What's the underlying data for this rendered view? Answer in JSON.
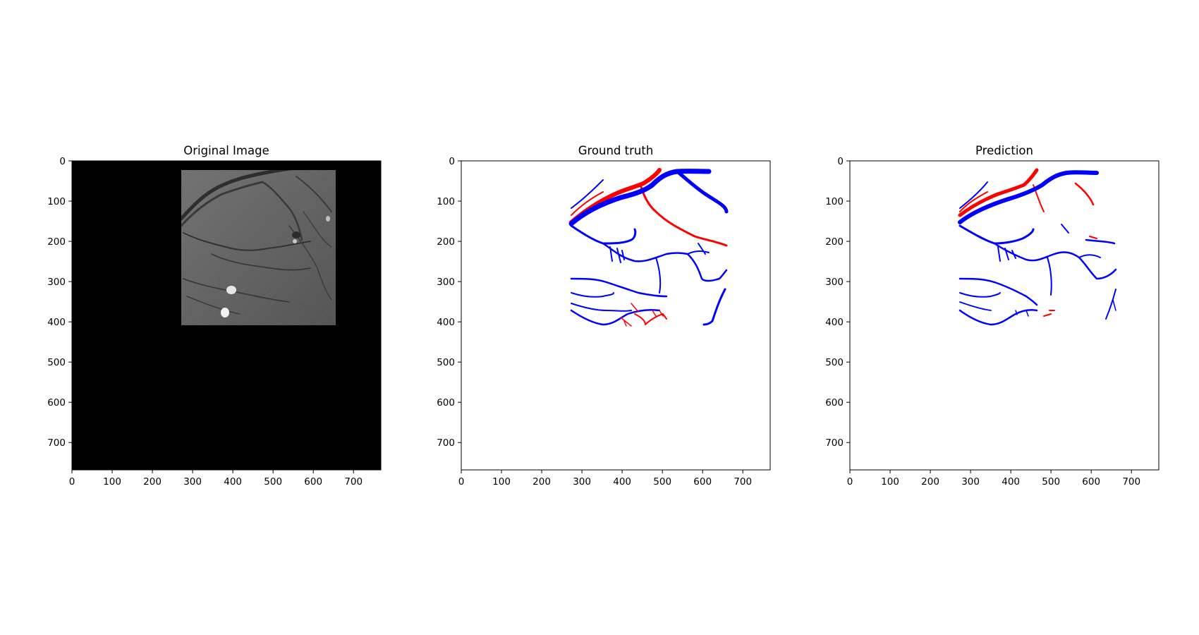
{
  "figure": {
    "background": "#ffffff",
    "panels": [
      {
        "id": "original",
        "title": "Original Image",
        "image": "grayscale retinal fundus crop on black background",
        "x_ticks": [
          "0",
          "100",
          "200",
          "300",
          "400",
          "500",
          "600",
          "700"
        ],
        "y_ticks": [
          "0",
          "100",
          "200",
          "300",
          "400",
          "500",
          "600",
          "700"
        ]
      },
      {
        "id": "ground_truth",
        "title": "Ground truth",
        "image": "vessel segmentation mask (red and blue vessels) on white",
        "x_ticks": [
          "0",
          "100",
          "200",
          "300",
          "400",
          "500",
          "600",
          "700"
        ],
        "y_ticks": [
          "0",
          "100",
          "200",
          "300",
          "400",
          "500",
          "600",
          "700"
        ]
      },
      {
        "id": "prediction",
        "title": "Prediction",
        "image": "predicted vessel segmentation mask (red and blue vessels) on white",
        "x_ticks": [
          "0",
          "100",
          "200",
          "300",
          "400",
          "500",
          "600",
          "700"
        ],
        "y_ticks": [
          "0",
          "100",
          "200",
          "300",
          "400",
          "500",
          "600",
          "700"
        ]
      }
    ],
    "colors": {
      "artery": "#ff0000",
      "vein": "#0000ff",
      "image_bg": "#000000",
      "mask_bg": "#ffffff"
    }
  }
}
